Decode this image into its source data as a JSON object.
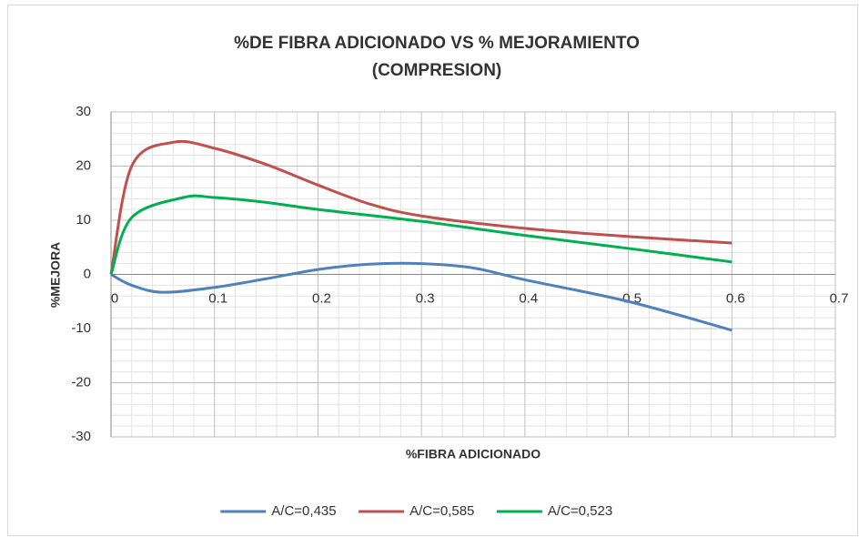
{
  "chart_data": {
    "type": "line",
    "title": [
      "%DE FIBRA ADICIONADO VS % MEJORAMIENTO",
      "(COMPRESION)"
    ],
    "x_label": "%FIBRA ADICIONADO",
    "y_label": "%MEJORA",
    "xlim": [
      0,
      0.7
    ],
    "xticks": [
      0,
      0.1,
      0.2,
      0.3,
      0.4,
      0.5,
      0.6,
      0.7
    ],
    "ylim": [
      -30,
      30
    ],
    "yticks": [
      -30,
      -20,
      -10,
      0,
      10,
      20,
      30
    ],
    "grid": true,
    "smooth": true,
    "legend": "bottom",
    "series": [
      {
        "name": "A/C=0,435",
        "color": "#4f81bd",
        "x": [
          0,
          0.02,
          0.05,
          0.1,
          0.15,
          0.2,
          0.25,
          0.3,
          0.35,
          0.4,
          0.5,
          0.6
        ],
        "values": [
          0,
          -2,
          -3.3,
          -2.4,
          -0.8,
          0.9,
          1.9,
          2,
          1.2,
          -1,
          -5,
          -10.3
        ]
      },
      {
        "name": "A/C=0,585",
        "color": "#c0504d",
        "x": [
          0,
          0.02,
          0.06,
          0.1,
          0.15,
          0.2,
          0.25,
          0.3,
          0.4,
          0.5,
          0.6
        ],
        "values": [
          0,
          20,
          24.4,
          23.3,
          20.3,
          16.5,
          13,
          10.8,
          8.5,
          7,
          5.8
        ]
      },
      {
        "name": "A/C=0,523",
        "color": "#00b050",
        "x": [
          0,
          0.02,
          0.07,
          0.1,
          0.15,
          0.2,
          0.3,
          0.4,
          0.5,
          0.6
        ],
        "values": [
          0,
          10.5,
          14.2,
          14.2,
          13.3,
          12,
          9.8,
          7.2,
          4.8,
          2.3
        ]
      }
    ]
  }
}
